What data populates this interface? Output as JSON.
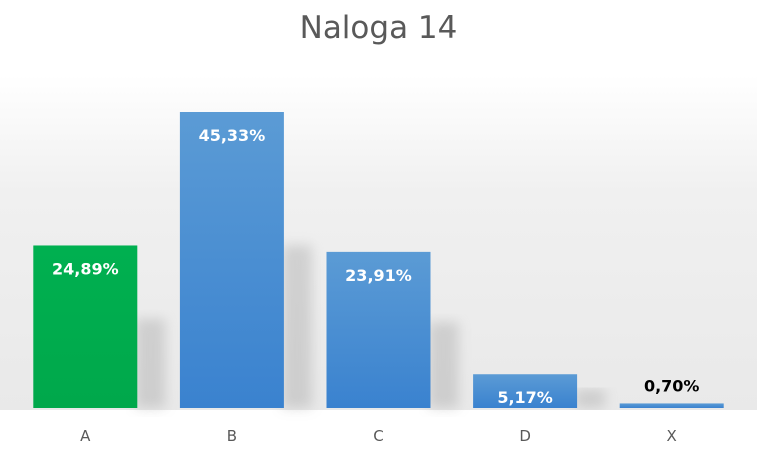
{
  "chart_data": {
    "type": "bar",
    "title": "Naloga 14",
    "categories": [
      "A",
      "B",
      "C",
      "D",
      "X"
    ],
    "values": [
      24.89,
      45.33,
      23.91,
      5.17,
      0.7
    ],
    "value_labels": [
      "24,89%",
      "45,33%",
      "23,91%",
      "5,17%",
      "0,70%"
    ],
    "colors": [
      "#00B050",
      "#4A8FD6",
      "#4A8FD6",
      "#4A8FD6",
      "#4A8FD6"
    ],
    "label_colors": [
      "#ffffff",
      "#ffffff",
      "#ffffff",
      "#ffffff",
      "#000000"
    ],
    "ylim": [
      0,
      50
    ],
    "grid": false,
    "legend": "none"
  }
}
